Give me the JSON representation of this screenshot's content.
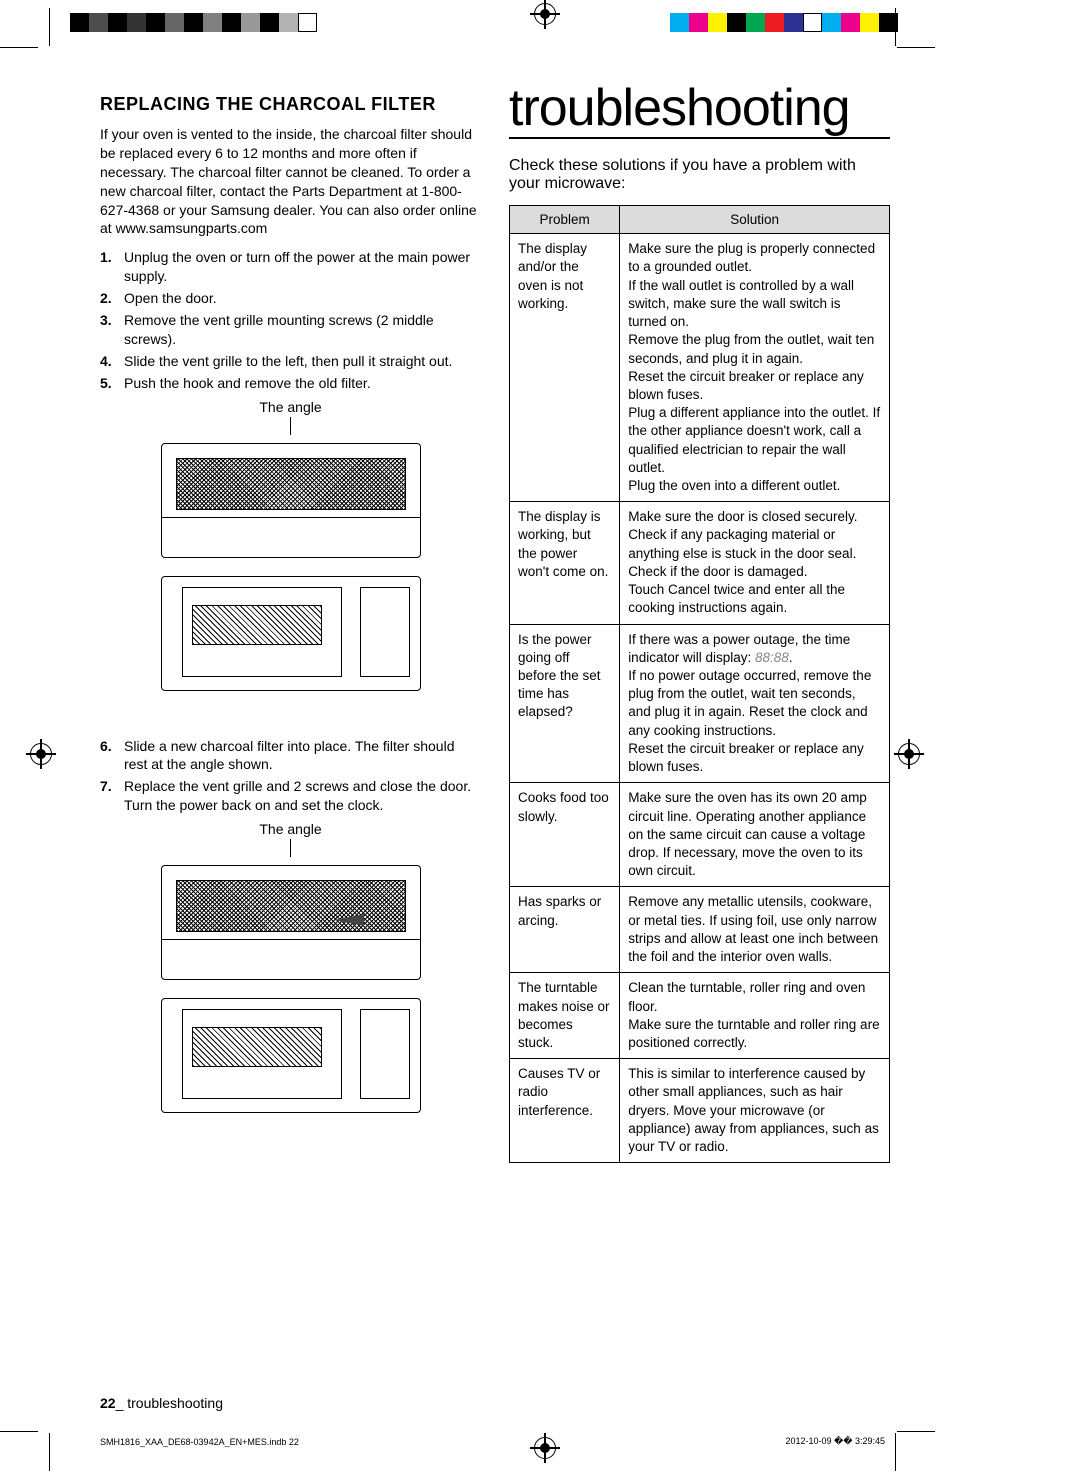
{
  "print_marks": {
    "colorbar_left": [
      "#000000",
      "#4d4d4d",
      "#000000",
      "#333333",
      "#000000",
      "#666666",
      "#000000",
      "#808080",
      "#000000",
      "#999999",
      "#000000",
      "#b3b3b3",
      "#ffffff"
    ],
    "colorbar_right": [
      "#00aeef",
      "#ec008c",
      "#fff200",
      "#000000",
      "#00a651",
      "#ed1c24",
      "#2e3192",
      "#ffffff",
      "#00aeef",
      "#ec008c",
      "#fff200",
      "#000000"
    ]
  },
  "left_column": {
    "heading": "REPLACING THE CHARCOAL FILTER",
    "intro": "If your oven is vented to the inside, the charcoal filter should be replaced every 6 to 12 months and more often if necessary. The charcoal filter cannot be cleaned. To order a new charcoal filter, contact the Parts Department at 1-800-627-4368 or your Samsung dealer. You can also order online at www.samsungparts.com",
    "steps_1to5": [
      "Unplug the oven or turn off the power at the main power supply.",
      "Open the door.",
      "Remove the vent grille mounting screws (2 middle screws).",
      "Slide the vent grille to the left, then pull it straight out.",
      "Push the hook and remove the old filter."
    ],
    "diagram_label_1": "The angle",
    "steps_6to7": [
      "Slide a new charcoal filter into place. The filter should rest at the angle shown.",
      "Replace the vent grille and 2 screws and close the door. Turn the power back on and set the clock."
    ],
    "diagram_label_2": "The angle"
  },
  "right_column": {
    "heading": "troubleshooting",
    "subheading": "Check these solutions if you have a problem with your microwave:",
    "table": {
      "headers": [
        "Problem",
        "Solution"
      ],
      "rows": [
        {
          "problem": "The display and/or the oven is not working.",
          "solution": "Make sure the plug is properly connected to a grounded outlet.\nIf the wall outlet is controlled by a wall switch, make sure the wall switch is turned on.\nRemove the plug from the outlet, wait ten seconds, and plug it in again.\nReset the circuit breaker or replace any blown fuses.\nPlug a different appliance into the outlet. If the other appliance doesn't work, call a qualified electrician to repair the wall outlet.\nPlug the oven into a different outlet."
        },
        {
          "problem": "The display is working, but the power won't come on.",
          "solution": "Make sure the door is closed securely.\nCheck if any packaging material or anything else is stuck in the door seal.\nCheck if the door is damaged.\nTouch Cancel twice and enter all the cooking instructions again."
        },
        {
          "problem": "Is the power going off before the set time has elapsed?",
          "solution_pre": "If there was a power outage, the time indicator will display: ",
          "solution_time": "88:88",
          "solution_post": ".\nIf no power outage occurred, remove the plug from the outlet, wait ten seconds, and plug it in again. Reset the clock and any cooking instructions.\nReset the circuit breaker or replace any blown fuses."
        },
        {
          "problem": "Cooks food too slowly.",
          "solution": "Make sure the oven has its own 20 amp circuit line. Operating another appliance on the same circuit can cause a voltage drop. If necessary, move the oven to its own circuit."
        },
        {
          "problem": "Has sparks or arcing.",
          "solution": "Remove any metallic utensils, cookware, or metal ties. If using foil, use only narrow strips and allow at least one inch between the foil and the interior oven walls."
        },
        {
          "problem": "The turntable makes noise or becomes stuck.",
          "solution": "Clean the turntable, roller ring and oven floor.\nMake sure the turntable and roller ring are positioned correctly."
        },
        {
          "problem": "Causes TV or radio interference.",
          "solution": "This is similar to interference caused by other small appliances, such as hair dryers. Move your microwave (or appliance) away from appliances, such as your TV or radio."
        }
      ]
    }
  },
  "footer": {
    "page_num": "22",
    "page_label": "_ troubleshooting",
    "file": "SMH1816_XAA_DE68-03942A_EN+MES.indb   22",
    "date": "2012-10-09   �� 3:29:45"
  }
}
